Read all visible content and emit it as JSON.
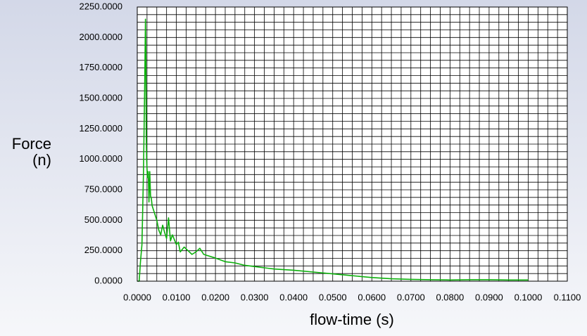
{
  "chart_data": {
    "type": "line",
    "xlabel": "flow-time (s)",
    "ylabel": [
      "Force",
      "(n)"
    ],
    "grid": true,
    "xlim": [
      0,
      0.11
    ],
    "ylim": [
      0,
      2250
    ],
    "xticks": [
      {
        "value": 0,
        "label": "0.0000"
      },
      {
        "value": 0.01,
        "label": "0.0100"
      },
      {
        "value": 0.02,
        "label": "0.0200"
      },
      {
        "value": 0.03,
        "label": "0.0300"
      },
      {
        "value": 0.04,
        "label": "0.0400"
      },
      {
        "value": 0.05,
        "label": "0.0500"
      },
      {
        "value": 0.06,
        "label": "0.0600"
      },
      {
        "value": 0.07,
        "label": "0.0700"
      },
      {
        "value": 0.08,
        "label": "0.0800"
      },
      {
        "value": 0.09,
        "label": "0.0900"
      },
      {
        "value": 0.1,
        "label": "0.1000"
      },
      {
        "value": 0.11,
        "label": "0.1100"
      }
    ],
    "yticks": [
      {
        "value": 0,
        "label": "0.0000"
      },
      {
        "value": 250,
        "label": "250.0000"
      },
      {
        "value": 500,
        "label": "500.0000"
      },
      {
        "value": 750,
        "label": "750.0000"
      },
      {
        "value": 1000,
        "label": "1000.0000"
      },
      {
        "value": 1250,
        "label": "1250.0000"
      },
      {
        "value": 1500,
        "label": "1500.0000"
      },
      {
        "value": 1750,
        "label": "1750.0000"
      },
      {
        "value": 2000,
        "label": "2000.0000"
      },
      {
        "value": 2250,
        "label": "2250.0000"
      }
    ],
    "minor_divisions": 4,
    "series": [
      {
        "color": "#0cb00c",
        "x": [
          0,
          0.0005,
          0.0008,
          0.0012,
          0.0016,
          0.0019,
          0.0021,
          0.0022,
          0.0023,
          0.0024,
          0.0026,
          0.0028,
          0.003,
          0.0032,
          0.0034,
          0.0036,
          0.0038,
          0.004,
          0.0045,
          0.005,
          0.0055,
          0.006,
          0.0065,
          0.007,
          0.0075,
          0.008,
          0.0085,
          0.009,
          0.0095,
          0.01,
          0.0105,
          0.011,
          0.012,
          0.013,
          0.014,
          0.015,
          0.016,
          0.017,
          0.018,
          0.02,
          0.0225,
          0.025,
          0.0275,
          0.03,
          0.035,
          0.04,
          0.045,
          0.05,
          0.055,
          0.06,
          0.065,
          0.07,
          0.075,
          0.08,
          0.085,
          0.09,
          0.095,
          0.1
        ],
        "values": [
          0,
          0,
          150,
          300,
          900,
          1600,
          2150,
          1900,
          1200,
          1000,
          850,
          900,
          650,
          900,
          700,
          680,
          620,
          600,
          550,
          500,
          420,
          380,
          460,
          400,
          350,
          520,
          330,
          380,
          340,
          300,
          320,
          240,
          280,
          250,
          220,
          240,
          270,
          220,
          210,
          190,
          160,
          150,
          130,
          120,
          100,
          90,
          75,
          60,
          45,
          30,
          20,
          15,
          12,
          10,
          12,
          12,
          10,
          10
        ]
      }
    ]
  }
}
